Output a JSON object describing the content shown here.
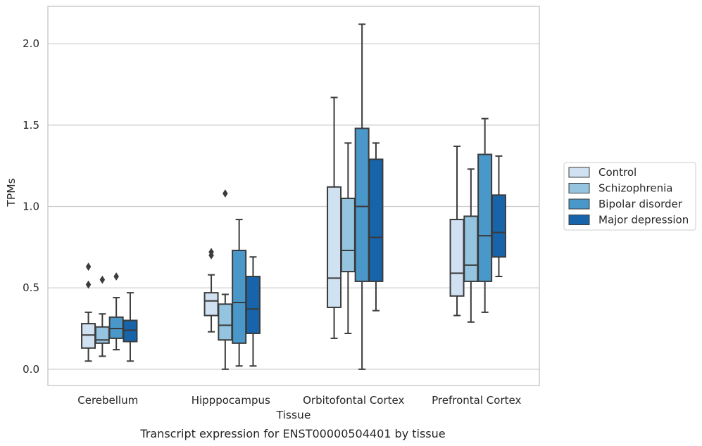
{
  "chart_data": {
    "type": "box",
    "xlabel": "Tissue",
    "ylabel": "TPMs",
    "caption": "Transcript expression for ENST00000504401 by tissue",
    "ylim": [
      -0.1,
      2.23
    ],
    "yticks": [
      "0.0",
      "0.5",
      "1.0",
      "1.5",
      "2.0"
    ],
    "ytick_values": [
      0.0,
      0.5,
      1.0,
      1.5,
      2.0
    ],
    "grid": "horizontal",
    "legend_position": "right",
    "categories": [
      "Cerebellum",
      "Hipppocampus",
      "Orbitofontal Cortex",
      "Prefrontal Cortex"
    ],
    "series": [
      {
        "name": "Control",
        "color": "#d0e1f2",
        "boxes": [
          {
            "whislo": 0.05,
            "q1": 0.13,
            "med": 0.21,
            "q3": 0.28,
            "whishi": 0.35,
            "fliers": [
              0.52,
              0.63
            ]
          },
          {
            "whislo": 0.23,
            "q1": 0.33,
            "med": 0.42,
            "q3": 0.47,
            "whishi": 0.58,
            "fliers": [
              0.7,
              0.72
            ]
          },
          {
            "whislo": 0.19,
            "q1": 0.38,
            "med": 0.56,
            "q3": 1.12,
            "whishi": 1.67,
            "fliers": []
          },
          {
            "whislo": 0.33,
            "q1": 0.45,
            "med": 0.59,
            "q3": 0.92,
            "whishi": 1.37,
            "fliers": []
          }
        ]
      },
      {
        "name": "Schizophrenia",
        "color": "#94c4df",
        "boxes": [
          {
            "whislo": 0.08,
            "q1": 0.16,
            "med": 0.18,
            "q3": 0.26,
            "whishi": 0.34,
            "fliers": [
              0.55
            ]
          },
          {
            "whislo": 0.0,
            "q1": 0.18,
            "med": 0.27,
            "q3": 0.4,
            "whishi": 0.46,
            "fliers": [
              1.08
            ]
          },
          {
            "whislo": 0.22,
            "q1": 0.6,
            "med": 0.73,
            "q3": 1.05,
            "whishi": 1.39,
            "fliers": []
          },
          {
            "whislo": 0.29,
            "q1": 0.54,
            "med": 0.64,
            "q3": 0.94,
            "whishi": 1.23,
            "fliers": []
          }
        ]
      },
      {
        "name": "Bipolar disorder",
        "color": "#4a98c9",
        "boxes": [
          {
            "whislo": 0.12,
            "q1": 0.19,
            "med": 0.25,
            "q3": 0.32,
            "whishi": 0.44,
            "fliers": [
              0.57
            ]
          },
          {
            "whislo": 0.02,
            "q1": 0.16,
            "med": 0.41,
            "q3": 0.73,
            "whishi": 0.92,
            "fliers": []
          },
          {
            "whislo": 0.0,
            "q1": 0.54,
            "med": 1.0,
            "q3": 1.48,
            "whishi": 2.12,
            "fliers": []
          },
          {
            "whislo": 0.35,
            "q1": 0.54,
            "med": 0.82,
            "q3": 1.32,
            "whishi": 1.54,
            "fliers": []
          }
        ]
      },
      {
        "name": "Major depression",
        "color": "#1764ab",
        "boxes": [
          {
            "whislo": 0.05,
            "q1": 0.17,
            "med": 0.24,
            "q3": 0.3,
            "whishi": 0.47,
            "fliers": []
          },
          {
            "whislo": 0.02,
            "q1": 0.22,
            "med": 0.37,
            "q3": 0.57,
            "whishi": 0.69,
            "fliers": []
          },
          {
            "whislo": 0.36,
            "q1": 0.54,
            "med": 0.81,
            "q3": 1.29,
            "whishi": 1.39,
            "fliers": []
          },
          {
            "whislo": 0.57,
            "q1": 0.69,
            "med": 0.84,
            "q3": 1.07,
            "whishi": 1.31,
            "fliers": []
          }
        ]
      }
    ]
  }
}
